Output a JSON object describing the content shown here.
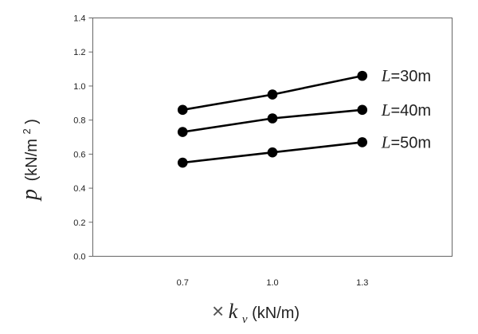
{
  "chart_data": {
    "type": "line",
    "x": [
      0.7,
      1.0,
      1.3
    ],
    "x_tick_labels": [
      "0.7",
      "1.0",
      "1.3"
    ],
    "y_ticks": [
      0.0,
      0.2,
      0.4,
      0.6,
      0.8,
      1.0,
      1.2,
      1.4
    ],
    "y_tick_labels": [
      "0.0",
      "0.2",
      "0.4",
      "0.6",
      "0.8",
      "1.0",
      "1.2",
      "1.4"
    ],
    "ylim": [
      0,
      1.4
    ],
    "xlim": [
      0.4,
      1.6
    ],
    "series": [
      {
        "name": "L=30m",
        "name_var": "L",
        "name_rest": "=30m",
        "values": [
          0.86,
          0.95,
          1.06
        ]
      },
      {
        "name": "L=40m",
        "name_var": "L",
        "name_rest": "=40m",
        "values": [
          0.73,
          0.81,
          0.86
        ]
      },
      {
        "name": "L=50m",
        "name_var": "L",
        "name_rest": "=50m",
        "values": [
          0.55,
          0.61,
          0.67
        ]
      }
    ],
    "ylabel": {
      "symbol": "p",
      "unit_prefix": "(kN/m",
      "unit_sup": "2",
      "unit_suffix": ")"
    },
    "xlabel": {
      "times": "×",
      "symbol": "k",
      "subscript": "v",
      "unit": "(kN/m)"
    },
    "grid": false,
    "legend": "inline-right"
  }
}
